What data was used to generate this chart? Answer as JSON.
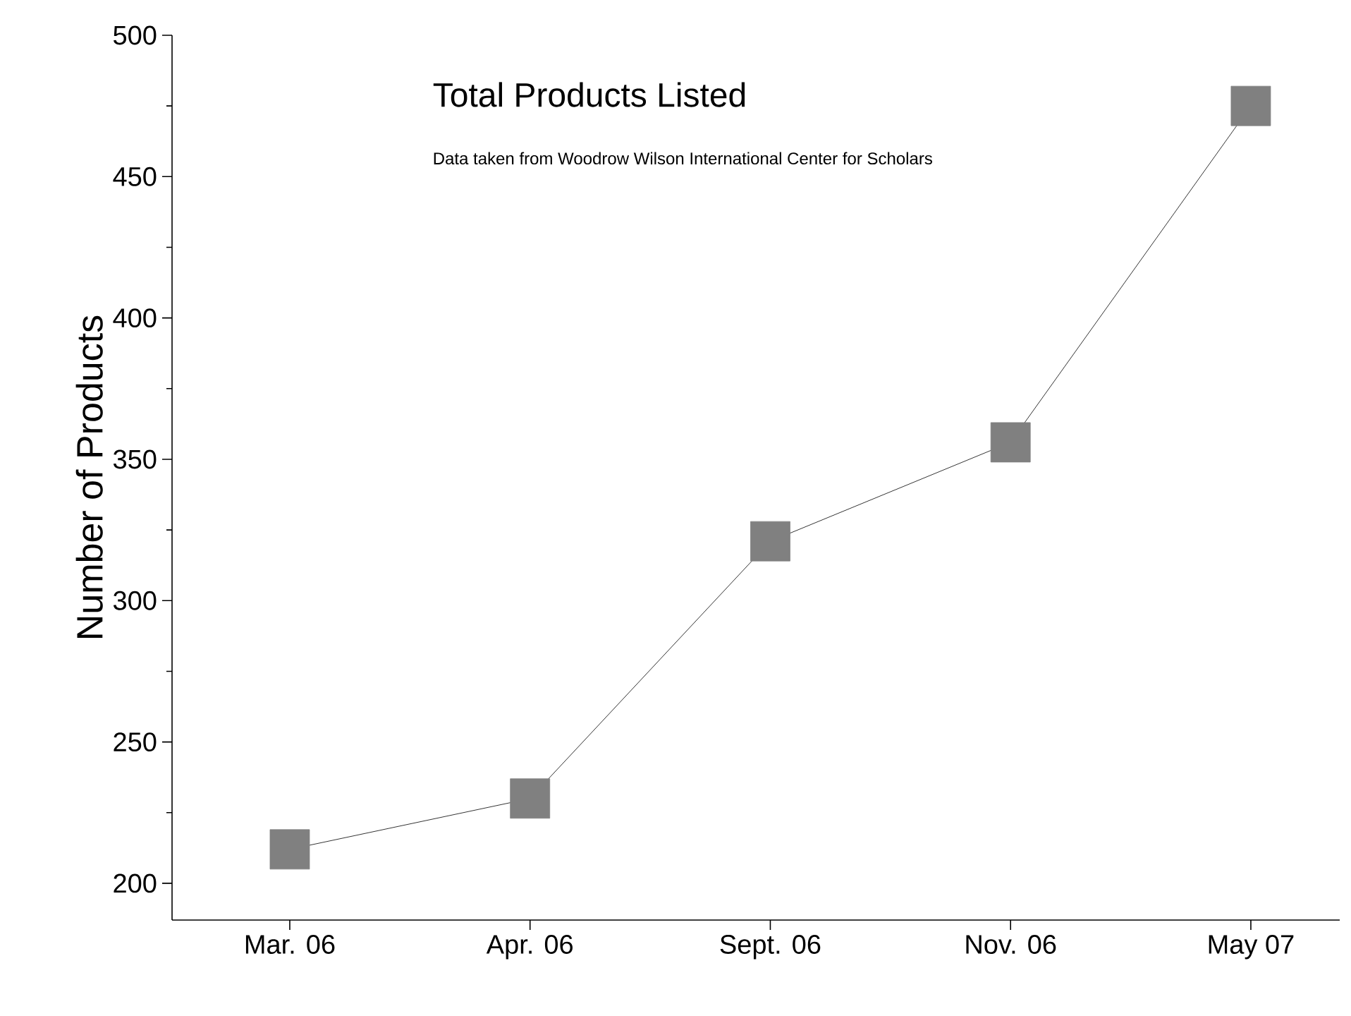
{
  "chart_data": {
    "type": "line",
    "title": "Total Products Listed",
    "subtitle": "Data taken from Woodrow Wilson International Center for Scholars",
    "ylabel": "Number of Products",
    "categories": [
      "Mar. 06",
      "Apr. 06",
      "Sept. 06",
      "Nov. 06",
      "May 07"
    ],
    "series": [
      {
        "color": "#808080",
        "values": [
          212,
          230,
          321,
          356,
          475
        ]
      }
    ],
    "ylim": [
      187,
      500
    ],
    "yticks": [
      200,
      250,
      300,
      350,
      400,
      450,
      500
    ],
    "marker": "square",
    "line_style": "solid",
    "grid": false
  }
}
